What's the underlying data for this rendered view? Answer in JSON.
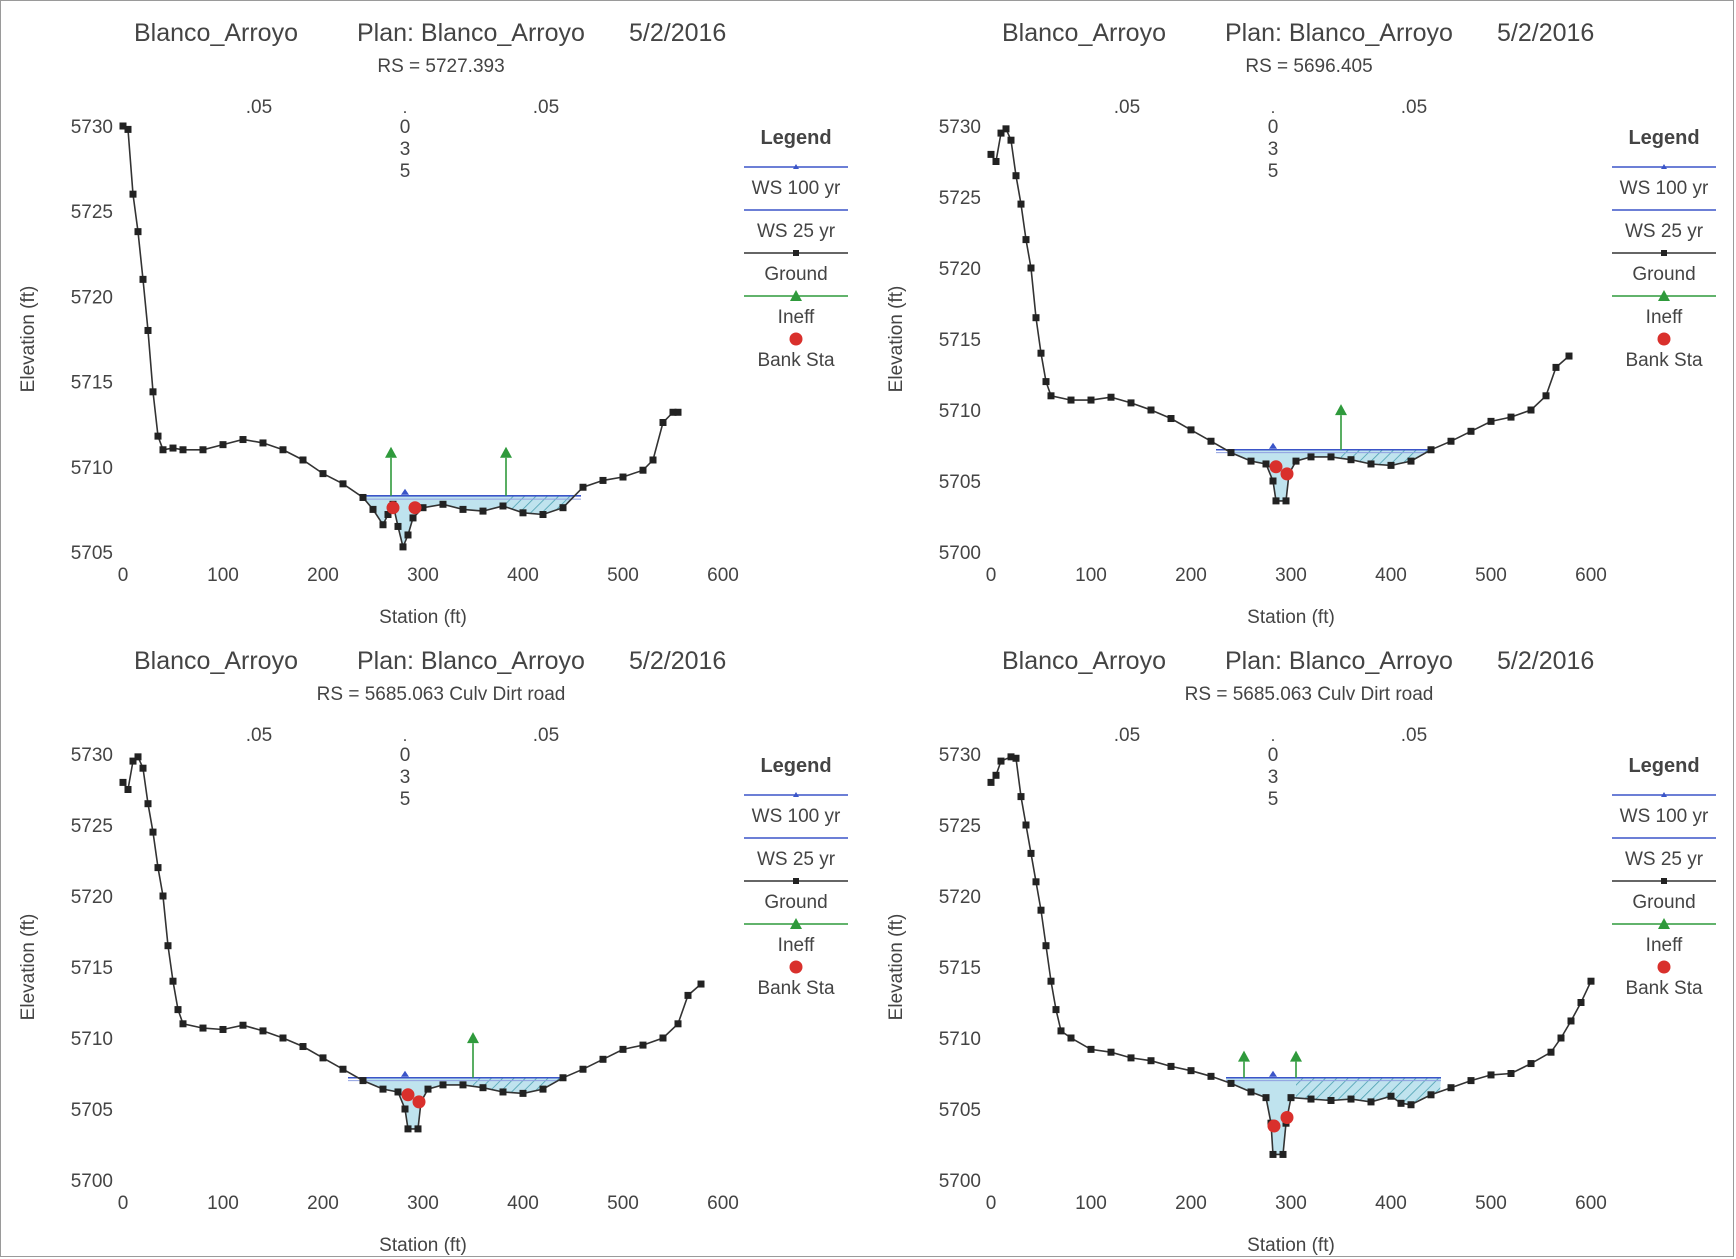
{
  "chart_data": [
    {
      "type": "line",
      "project": "Blanco_Arroyo",
      "plan": "Plan: Blanco_Arroyo",
      "date": "5/2/2016",
      "subtitle": "RS = 5727.393",
      "xlabel": "Station (ft)",
      "ylabel": "Elevation (ft)",
      "xlim": [
        0,
        600
      ],
      "ylim": [
        5705,
        5730
      ],
      "xticks": [
        "0",
        "100",
        "200",
        "300",
        "400",
        "500",
        "600"
      ],
      "yticks": [
        "5705",
        "5710",
        "5715",
        "5720",
        "5725",
        "5730"
      ],
      "mannings": [
        ".05",
        ".035",
        ".05"
      ],
      "legend_title": "Legend",
      "legend": [
        "WS 100 yr",
        "WS 25 yr",
        "Ground",
        "Ineff",
        "Bank Sta"
      ],
      "ground": [
        [
          0,
          5730
        ],
        [
          5,
          5729.8
        ],
        [
          10,
          5726
        ],
        [
          15,
          5723.8
        ],
        [
          20,
          5721
        ],
        [
          25,
          5718
        ],
        [
          30,
          5714.4
        ],
        [
          35,
          5711.8
        ],
        [
          40,
          5711
        ],
        [
          50,
          5711.1
        ],
        [
          60,
          5711
        ],
        [
          80,
          5711
        ],
        [
          100,
          5711.3
        ],
        [
          120,
          5711.6
        ],
        [
          140,
          5711.4
        ],
        [
          160,
          5711
        ],
        [
          180,
          5710.4
        ],
        [
          200,
          5709.6
        ],
        [
          220,
          5709
        ],
        [
          240,
          5708.2
        ],
        [
          250,
          5707.5
        ],
        [
          260,
          5706.6
        ],
        [
          265,
          5707.2
        ],
        [
          270,
          5707.8
        ],
        [
          275,
          5706.5
        ],
        [
          280,
          5705.3
        ],
        [
          285,
          5706
        ],
        [
          290,
          5707
        ],
        [
          300,
          5707.6
        ],
        [
          320,
          5707.8
        ],
        [
          340,
          5707.5
        ],
        [
          360,
          5707.4
        ],
        [
          380,
          5707.7
        ],
        [
          400,
          5707.3
        ],
        [
          420,
          5707.2
        ],
        [
          440,
          5707.6
        ],
        [
          460,
          5708.8
        ],
        [
          480,
          5709.2
        ],
        [
          500,
          5709.4
        ],
        [
          520,
          5709.8
        ],
        [
          530,
          5710.4
        ],
        [
          540,
          5712.6
        ],
        [
          550,
          5713.2
        ],
        [
          555,
          5713.2
        ]
      ],
      "ws_100yr": 5708.3,
      "ws_25yr": 5708.1,
      "ws_extent": [
        238,
        458
      ],
      "ineffective": [
        [
          268,
          5711.0
        ],
        [
          383,
          5711.0
        ]
      ],
      "bank_stations": [
        [
          270,
          5707.6
        ],
        [
          292,
          5707.6
        ]
      ]
    },
    {
      "type": "line",
      "project": "Blanco_Arroyo",
      "plan": "Plan: Blanco_Arroyo",
      "date": "5/2/2016",
      "subtitle": "RS = 5696.405",
      "xlabel": "Station (ft)",
      "ylabel": "Elevation (ft)",
      "xlim": [
        0,
        600
      ],
      "ylim": [
        5700,
        5730
      ],
      "xticks": [
        "0",
        "100",
        "200",
        "300",
        "400",
        "500",
        "600"
      ],
      "yticks": [
        "5700",
        "5705",
        "5710",
        "5715",
        "5720",
        "5725",
        "5730"
      ],
      "mannings": [
        ".05",
        ".035",
        ".05"
      ],
      "legend_title": "Legend",
      "legend": [
        "WS 100 yr",
        "WS 25 yr",
        "Ground",
        "Ineff",
        "Bank Sta"
      ],
      "ground": [
        [
          0,
          5728
        ],
        [
          5,
          5727.5
        ],
        [
          10,
          5729.5
        ],
        [
          15,
          5729.8
        ],
        [
          20,
          5729
        ],
        [
          25,
          5726.5
        ],
        [
          30,
          5724.5
        ],
        [
          35,
          5722
        ],
        [
          40,
          5720
        ],
        [
          45,
          5716.5
        ],
        [
          50,
          5714
        ],
        [
          55,
          5712
        ],
        [
          60,
          5711
        ],
        [
          80,
          5710.7
        ],
        [
          100,
          5710.7
        ],
        [
          120,
          5710.9
        ],
        [
          140,
          5710.5
        ],
        [
          160,
          5710
        ],
        [
          180,
          5709.4
        ],
        [
          200,
          5708.6
        ],
        [
          220,
          5707.8
        ],
        [
          240,
          5707
        ],
        [
          260,
          5706.4
        ],
        [
          275,
          5706.2
        ],
        [
          282,
          5705
        ],
        [
          285,
          5703.6
        ],
        [
          295,
          5703.6
        ],
        [
          298,
          5705.5
        ],
        [
          305,
          5706.4
        ],
        [
          320,
          5706.7
        ],
        [
          340,
          5706.7
        ],
        [
          360,
          5706.5
        ],
        [
          380,
          5706.2
        ],
        [
          400,
          5706.1
        ],
        [
          420,
          5706.4
        ],
        [
          440,
          5707.2
        ],
        [
          460,
          5707.8
        ],
        [
          480,
          5708.5
        ],
        [
          500,
          5709.2
        ],
        [
          520,
          5709.5
        ],
        [
          540,
          5710
        ],
        [
          555,
          5711
        ],
        [
          565,
          5713
        ],
        [
          578,
          5713.8
        ]
      ],
      "ws_100yr": 5707.2,
      "ws_25yr": 5707.0,
      "ws_extent": [
        225,
        438
      ],
      "ineffective": [
        [
          350,
          5710.2
        ]
      ],
      "bank_stations": [
        [
          285,
          5706.0
        ],
        [
          296,
          5705.5
        ]
      ]
    },
    {
      "type": "line",
      "project": "Blanco_Arroyo",
      "plan": "Plan: Blanco_Arroyo",
      "date": "5/2/2016",
      "subtitle": "RS = 5685.063 Culv  Dirt road",
      "xlabel": "Station (ft)",
      "ylabel": "Elevation (ft)",
      "xlim": [
        0,
        600
      ],
      "ylim": [
        5700,
        5730
      ],
      "xticks": [
        "0",
        "100",
        "200",
        "300",
        "400",
        "500",
        "600"
      ],
      "yticks": [
        "5700",
        "5705",
        "5710",
        "5715",
        "5720",
        "5725",
        "5730"
      ],
      "mannings": [
        ".05",
        ".035",
        ".05"
      ],
      "legend_title": "Legend",
      "legend": [
        "WS 100 yr",
        "WS 25 yr",
        "Ground",
        "Ineff",
        "Bank Sta"
      ],
      "ground": [
        [
          0,
          5728
        ],
        [
          5,
          5727.5
        ],
        [
          10,
          5729.5
        ],
        [
          15,
          5729.8
        ],
        [
          20,
          5729
        ],
        [
          25,
          5726.5
        ],
        [
          30,
          5724.5
        ],
        [
          35,
          5722
        ],
        [
          40,
          5720
        ],
        [
          45,
          5716.5
        ],
        [
          50,
          5714
        ],
        [
          55,
          5712
        ],
        [
          60,
          5711
        ],
        [
          80,
          5710.7
        ],
        [
          100,
          5710.6
        ],
        [
          120,
          5710.9
        ],
        [
          140,
          5710.5
        ],
        [
          160,
          5710
        ],
        [
          180,
          5709.4
        ],
        [
          200,
          5708.6
        ],
        [
          220,
          5707.8
        ],
        [
          240,
          5707
        ],
        [
          260,
          5706.4
        ],
        [
          275,
          5706.2
        ],
        [
          282,
          5705
        ],
        [
          285,
          5703.6
        ],
        [
          295,
          5703.6
        ],
        [
          298,
          5705.5
        ],
        [
          305,
          5706.4
        ],
        [
          320,
          5706.7
        ],
        [
          340,
          5706.7
        ],
        [
          360,
          5706.5
        ],
        [
          380,
          5706.2
        ],
        [
          400,
          5706.1
        ],
        [
          420,
          5706.4
        ],
        [
          440,
          5707.2
        ],
        [
          460,
          5707.8
        ],
        [
          480,
          5708.5
        ],
        [
          500,
          5709.2
        ],
        [
          520,
          5709.5
        ],
        [
          540,
          5710
        ],
        [
          555,
          5711
        ],
        [
          565,
          5713
        ],
        [
          578,
          5713.8
        ]
      ],
      "ws_100yr": 5707.2,
      "ws_25yr": 5707.0,
      "ws_extent": [
        225,
        438
      ],
      "ineffective": [
        [
          350,
          5710.2
        ]
      ],
      "bank_stations": [
        [
          285,
          5706.0
        ],
        [
          296,
          5705.5
        ]
      ]
    },
    {
      "type": "line",
      "project": "Blanco_Arroyo",
      "plan": "Plan: Blanco_Arroyo",
      "date": "5/2/2016",
      "subtitle": "RS = 5685.063 Culv  Dirt road",
      "xlabel": "Station (ft)",
      "ylabel": "Elevation (ft)",
      "xlim": [
        0,
        600
      ],
      "ylim": [
        5700,
        5730
      ],
      "xticks": [
        "0",
        "100",
        "200",
        "300",
        "400",
        "500",
        "600"
      ],
      "yticks": [
        "5700",
        "5705",
        "5710",
        "5715",
        "5720",
        "5725",
        "5730"
      ],
      "mannings": [
        ".05",
        ".035",
        ".05"
      ],
      "legend_title": "Legend",
      "legend": [
        "WS 100 yr",
        "WS 25 yr",
        "Ground",
        "Ineff",
        "Bank Sta"
      ],
      "ground": [
        [
          0,
          5728
        ],
        [
          5,
          5728.5
        ],
        [
          10,
          5729.5
        ],
        [
          20,
          5729.8
        ],
        [
          25,
          5729.7
        ],
        [
          30,
          5727
        ],
        [
          35,
          5725
        ],
        [
          40,
          5723
        ],
        [
          45,
          5721
        ],
        [
          50,
          5719
        ],
        [
          55,
          5716.5
        ],
        [
          60,
          5714
        ],
        [
          65,
          5712
        ],
        [
          70,
          5710.5
        ],
        [
          80,
          5710
        ],
        [
          100,
          5709.2
        ],
        [
          120,
          5709
        ],
        [
          140,
          5708.6
        ],
        [
          160,
          5708.4
        ],
        [
          180,
          5708
        ],
        [
          200,
          5707.7
        ],
        [
          220,
          5707.3
        ],
        [
          240,
          5706.8
        ],
        [
          260,
          5706.2
        ],
        [
          275,
          5705.8
        ],
        [
          280,
          5704
        ],
        [
          282,
          5701.8
        ],
        [
          292,
          5701.8
        ],
        [
          295,
          5704
        ],
        [
          300,
          5705.8
        ],
        [
          320,
          5705.7
        ],
        [
          340,
          5705.6
        ],
        [
          360,
          5705.7
        ],
        [
          380,
          5705.5
        ],
        [
          400,
          5705.9
        ],
        [
          410,
          5705.4
        ],
        [
          420,
          5705.3
        ],
        [
          440,
          5706
        ],
        [
          460,
          5706.5
        ],
        [
          480,
          5707
        ],
        [
          500,
          5707.4
        ],
        [
          520,
          5707.5
        ],
        [
          540,
          5708.2
        ],
        [
          560,
          5709
        ],
        [
          570,
          5710
        ],
        [
          580,
          5711.2
        ],
        [
          590,
          5712.5
        ],
        [
          600,
          5714
        ]
      ],
      "ws_100yr": 5707.2,
      "ws_25yr": 5707.0,
      "ws_extent": [
        235,
        450
      ],
      "ineffective": [
        [
          253,
          5708.9
        ],
        [
          305,
          5708.9
        ]
      ],
      "bank_stations": [
        [
          283,
          5703.8
        ],
        [
          296,
          5704.4
        ]
      ]
    }
  ]
}
